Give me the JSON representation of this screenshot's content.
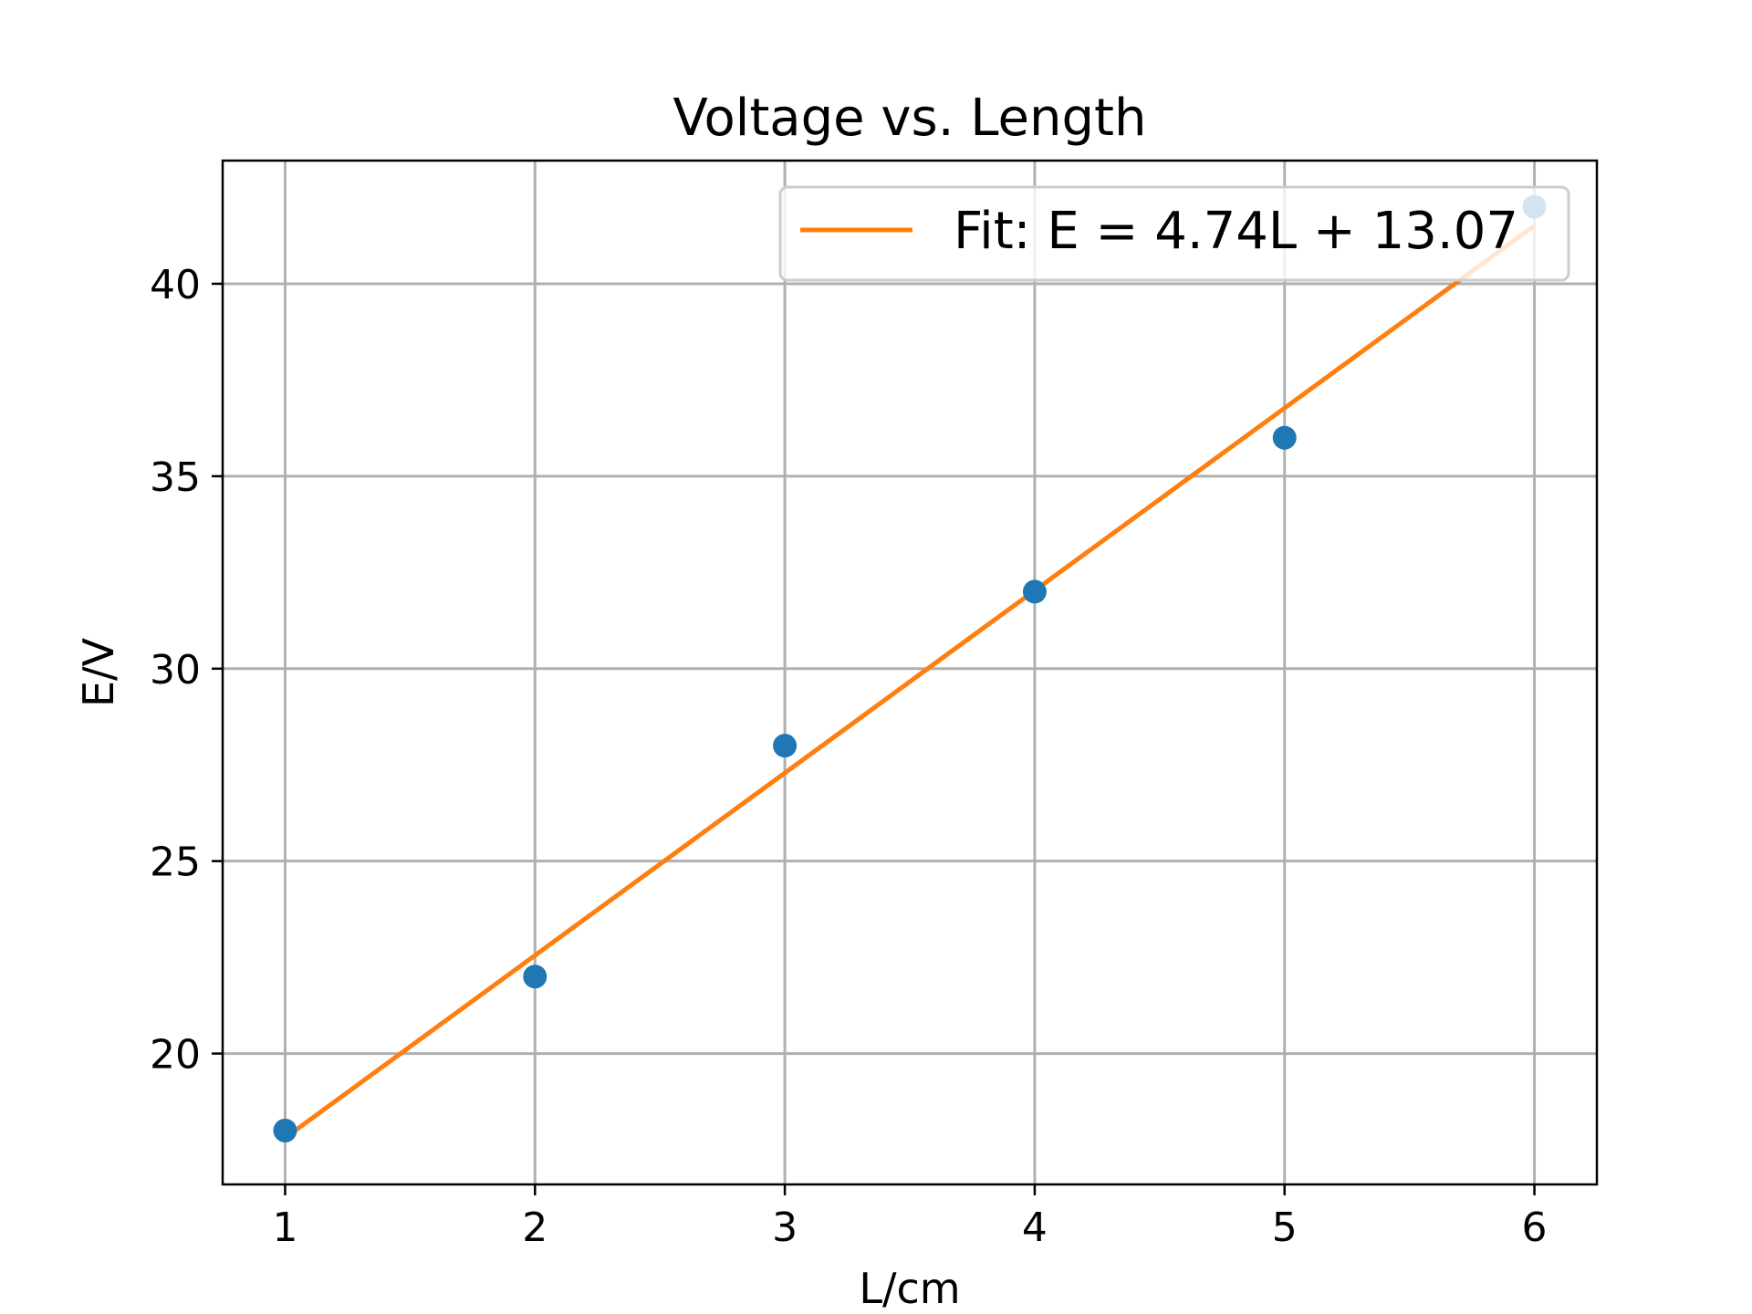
{
  "chart_data": {
    "type": "scatter",
    "title": "Voltage vs. Length",
    "xlabel": "L/cm",
    "ylabel": "E/V",
    "xlim": [
      0.75,
      6.25
    ],
    "ylim": [
      16.6,
      43.2
    ],
    "x_ticks": [
      1,
      2,
      3,
      4,
      5,
      6
    ],
    "y_ticks": [
      20,
      25,
      30,
      35,
      40
    ],
    "grid": true,
    "legend_position": "top-right",
    "series": [
      {
        "kind": "scatter",
        "color": "#1f77b4",
        "x": [
          1,
          2,
          3,
          4,
          5,
          6
        ],
        "y": [
          18,
          22,
          28,
          32,
          36,
          42
        ]
      },
      {
        "kind": "line",
        "name": "Fit: E = 4.74L + 13.07",
        "color": "#ff7f0e",
        "slope": 4.74,
        "intercept": 13.07,
        "x_range": [
          1,
          6
        ]
      }
    ]
  }
}
